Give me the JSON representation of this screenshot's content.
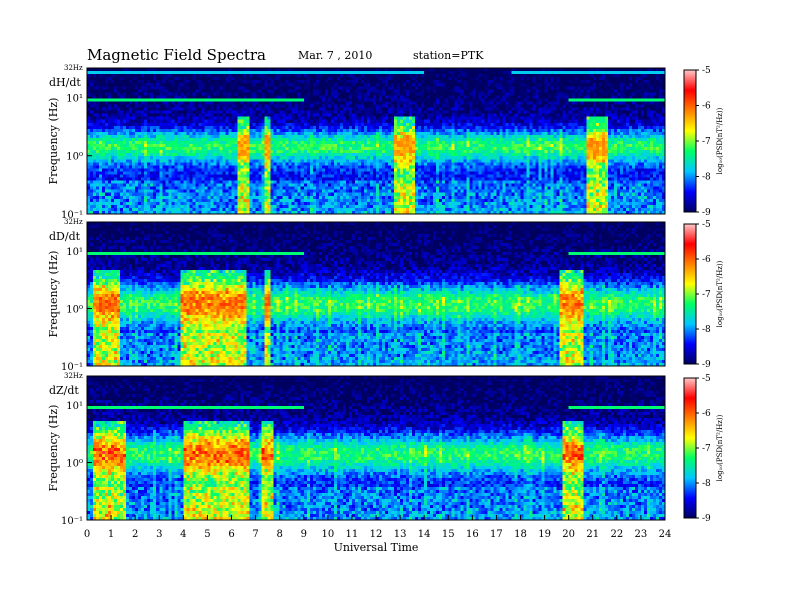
{
  "header": {
    "title": "Magnetic  Field  Spectra",
    "date": "Mar. 7  , 2010",
    "station": "station=PTK"
  },
  "chart_data": {
    "type": "heatmap",
    "xlabel": "Universal Time",
    "x_ticks": [
      "0",
      "1",
      "2",
      "3",
      "4",
      "5",
      "6",
      "7",
      "8",
      "9",
      "10",
      "11",
      "12",
      "13",
      "14",
      "15",
      "16",
      "17",
      "18",
      "19",
      "20",
      "21",
      "22",
      "23",
      "24"
    ],
    "xlim": [
      0,
      24
    ],
    "ylabel": "Frequency  (Hz)",
    "y_scale": "log",
    "ylim": [
      0.1,
      32
    ],
    "y_top_label": "32Hz",
    "y_tick_labels": [
      "10¹",
      "10⁰",
      "10⁻¹"
    ],
    "colorbar": {
      "label": "log₁₀(PSD(nT²/Hz))",
      "range": [
        -9,
        -5
      ],
      "ticks": [
        "-5",
        "-6",
        "-7",
        "-8",
        "-9"
      ],
      "colors": [
        "#000060",
        "#0000ff",
        "#00c8ff",
        "#00ff66",
        "#ffff00",
        "#ff8000",
        "#ff0000",
        "#ffc8c8"
      ]
    },
    "panels": [
      {
        "component": "dH/dt",
        "bright_band_hz": [
          0.7,
          3.0
        ],
        "strong_activity_ut": [
          [
            6.3,
            6.8
          ],
          [
            7.4,
            7.6
          ],
          [
            12.8,
            13.6
          ],
          [
            20.8,
            21.6
          ]
        ],
        "line_10hz_ut": [
          [
            0,
            9
          ],
          [
            20,
            24
          ]
        ],
        "line_30hz_ut": [
          [
            0,
            14
          ],
          [
            17.6,
            24
          ]
        ],
        "peak_level": -6.5
      },
      {
        "component": "dD/dt",
        "bright_band_hz": [
          0.5,
          3.0
        ],
        "strong_activity_ut": [
          [
            0.2,
            1.4
          ],
          [
            3.9,
            6.6
          ],
          [
            7.4,
            7.6
          ],
          [
            19.6,
            20.6
          ]
        ],
        "line_10hz_ut": [
          [
            0,
            9
          ],
          [
            20,
            24
          ]
        ],
        "line_30hz_ut": [],
        "peak_level": -6.2
      },
      {
        "component": "dZ/dt",
        "bright_band_hz": [
          0.6,
          3.5
        ],
        "strong_activity_ut": [
          [
            0.2,
            1.6
          ],
          [
            4.0,
            6.8
          ],
          [
            7.3,
            7.8
          ],
          [
            19.8,
            20.6
          ]
        ],
        "line_10hz_ut": [
          [
            0,
            9
          ],
          [
            20,
            24
          ]
        ],
        "line_30hz_ut": [],
        "peak_level": -5.6
      }
    ]
  }
}
